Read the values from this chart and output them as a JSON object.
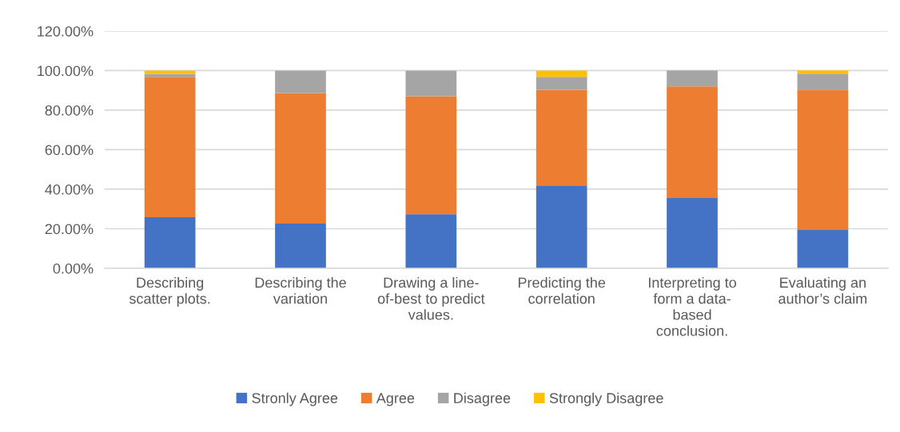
{
  "chart_data": {
    "type": "bar",
    "stacked": true,
    "categories": [
      "Describing scatter plots.",
      "Describing the variation",
      "Drawing a line-of-best to predict values.",
      "Predicting the correlation",
      "Interpreting to form a data-based conclusion.",
      "Evaluating an author’s claim"
    ],
    "series": [
      {
        "name": "Stronly Agree",
        "color": "#4472c4",
        "values": [
          25.8,
          22.6,
          27.4,
          41.9,
          35.5,
          19.4
        ]
      },
      {
        "name": "Agree",
        "color": "#ed7d31",
        "values": [
          71.0,
          66.1,
          59.7,
          48.4,
          56.5,
          71.0
        ]
      },
      {
        "name": "Disagree",
        "color": "#a5a5a5",
        "values": [
          1.6,
          11.3,
          12.9,
          6.5,
          8.1,
          8.1
        ]
      },
      {
        "name": "Strongly Disagree",
        "color": "#ffc000",
        "values": [
          1.6,
          null,
          null,
          3.2,
          null,
          1.6
        ]
      }
    ],
    "ylim": [
      0,
      120
    ],
    "yticks": [
      {
        "value": 0,
        "label": "0.00%"
      },
      {
        "value": 20,
        "label": "20.00%"
      },
      {
        "value": 40,
        "label": "40.00%"
      },
      {
        "value": 60,
        "label": "60.00%"
      },
      {
        "value": 80,
        "label": "80.00%"
      },
      {
        "value": 100,
        "label": "100.00%"
      },
      {
        "value": 120,
        "label": "120.00%"
      }
    ],
    "grid": "y",
    "legend": "bottom"
  }
}
